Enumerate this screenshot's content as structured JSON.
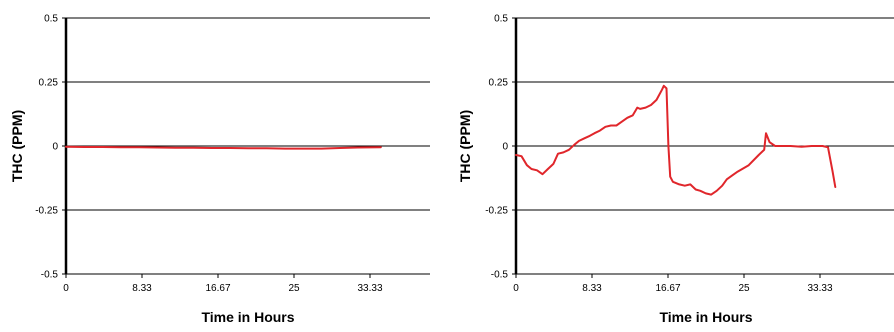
{
  "chart_data": [
    {
      "type": "line",
      "xlabel": "Time in Hours",
      "ylabel": "THC (PPM)",
      "ylim": [
        -0.5,
        0.5
      ],
      "xlim": [
        0,
        35
      ],
      "y_ticks": [
        "0.5",
        "0.25",
        "0",
        "-0.25",
        "-0.5"
      ],
      "x_ticks": [
        "0",
        "8.33",
        "16.67",
        "25",
        "33.33"
      ],
      "grid": "horizontal",
      "series_color": "#e0262b",
      "series": [
        {
          "x": [
            0,
            2,
            4,
            6,
            8,
            10,
            12,
            14,
            16,
            18,
            20,
            22,
            24,
            26,
            28,
            30,
            32,
            34.5
          ],
          "y": [
            -0.003,
            -0.004,
            -0.004,
            -0.005,
            -0.005,
            -0.006,
            -0.007,
            -0.007,
            -0.008,
            -0.008,
            -0.009,
            -0.009,
            -0.01,
            -0.01,
            -0.01,
            -0.008,
            -0.006,
            -0.005
          ]
        }
      ]
    },
    {
      "type": "line",
      "xlabel": "Time in Hours",
      "ylabel": "THC (PPM)",
      "ylim": [
        -0.5,
        0.5
      ],
      "xlim": [
        0,
        35
      ],
      "y_ticks": [
        "0.5",
        "0.25",
        "0",
        "-0.25",
        "-0.5"
      ],
      "x_ticks": [
        "0",
        "8.33",
        "16.67",
        "25",
        "33.33"
      ],
      "grid": "horizontal",
      "series_color": "#e0262b",
      "series": [
        {
          "x": [
            0,
            0.6,
            1.2,
            1.7,
            2.3,
            2.9,
            3.5,
            4.1,
            4.6,
            5.2,
            5.8,
            6.4,
            6.9,
            7.5,
            8.1,
            8.6,
            9.2,
            9.8,
            10.4,
            11.0,
            11.6,
            12.2,
            12.8,
            13.3,
            13.6,
            14.2,
            14.8,
            15.4,
            16.0,
            16.2,
            16.5,
            16.7,
            16.9,
            17.2,
            17.9,
            18.5,
            19.1,
            19.7,
            20.2,
            20.8,
            21.4,
            22.0,
            22.6,
            23.1,
            23.7,
            24.3,
            25.5,
            26.6,
            27.2,
            27.4,
            27.8,
            28.4,
            29.0,
            30.1,
            31.3,
            32.4,
            33.6,
            34.2,
            34.7,
            35.0
          ],
          "y": [
            -0.035,
            -0.04,
            -0.075,
            -0.09,
            -0.095,
            -0.11,
            -0.09,
            -0.07,
            -0.03,
            -0.025,
            -0.015,
            0.005,
            0.02,
            0.03,
            0.04,
            0.05,
            0.06,
            0.075,
            0.08,
            0.08,
            0.095,
            0.11,
            0.12,
            0.15,
            0.145,
            0.15,
            0.16,
            0.18,
            0.22,
            0.235,
            0.225,
            0.0,
            -0.12,
            -0.14,
            -0.15,
            -0.155,
            -0.15,
            -0.17,
            -0.175,
            -0.185,
            -0.19,
            -0.175,
            -0.155,
            -0.13,
            -0.115,
            -0.1,
            -0.075,
            -0.035,
            -0.015,
            0.05,
            0.015,
            0.0,
            0.0,
            0.0,
            -0.003,
            0.0,
            0.0,
            -0.005,
            -0.1,
            -0.16
          ]
        }
      ]
    }
  ]
}
